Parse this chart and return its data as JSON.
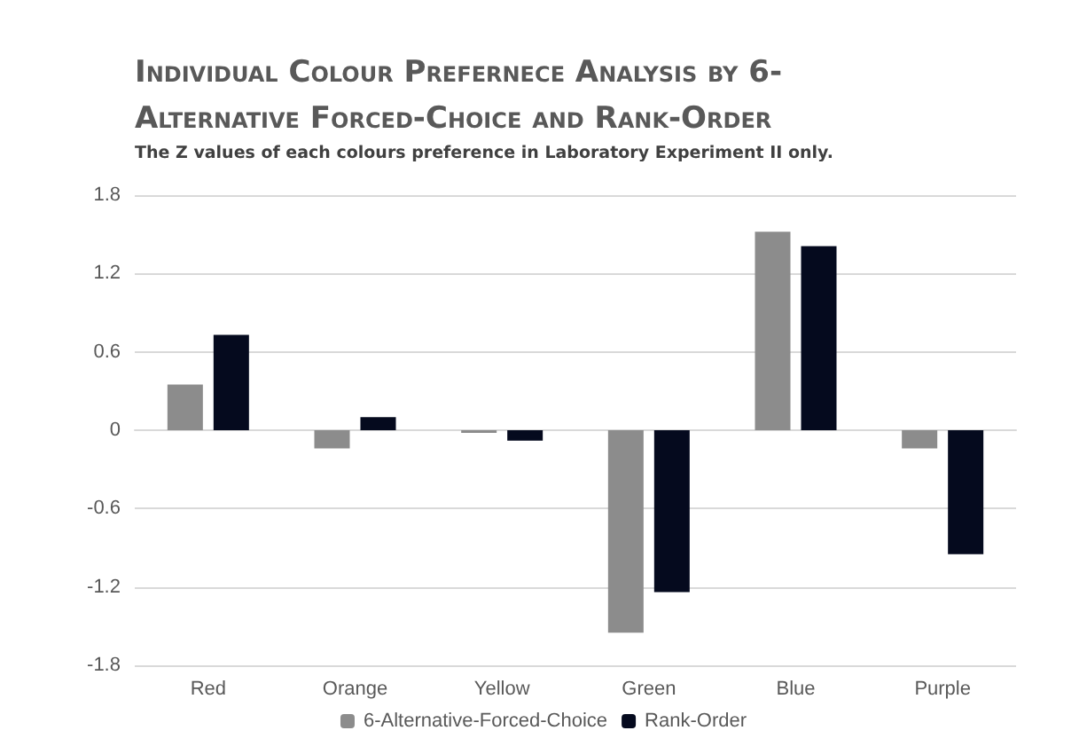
{
  "chart_data": {
    "type": "bar",
    "title": "Individual Colour Prefernece Analysis by 6-Alternative Forced-Choice and Rank-Order",
    "subtitle": "The Z values of each colours preference in  Laboratory Experiment II only.",
    "categories": [
      "Red",
      "Orange",
      "Yellow",
      "Green",
      "Blue",
      "Purple"
    ],
    "series": [
      {
        "name": "6-Alternative-Forced-Choice",
        "color": "#8c8c8c",
        "values": [
          0.35,
          -0.14,
          -0.02,
          -1.55,
          1.52,
          -0.14
        ]
      },
      {
        "name": "Rank-Order",
        "color": "#050a1e",
        "values": [
          0.73,
          0.1,
          -0.08,
          -1.24,
          1.41,
          -0.95
        ]
      }
    ],
    "ylim": [
      -1.8,
      1.8
    ],
    "yticks": [
      -1.8,
      -1.2,
      -0.6,
      0,
      0.6,
      1.2,
      1.8
    ],
    "grid": "y",
    "legend": "bottom"
  }
}
